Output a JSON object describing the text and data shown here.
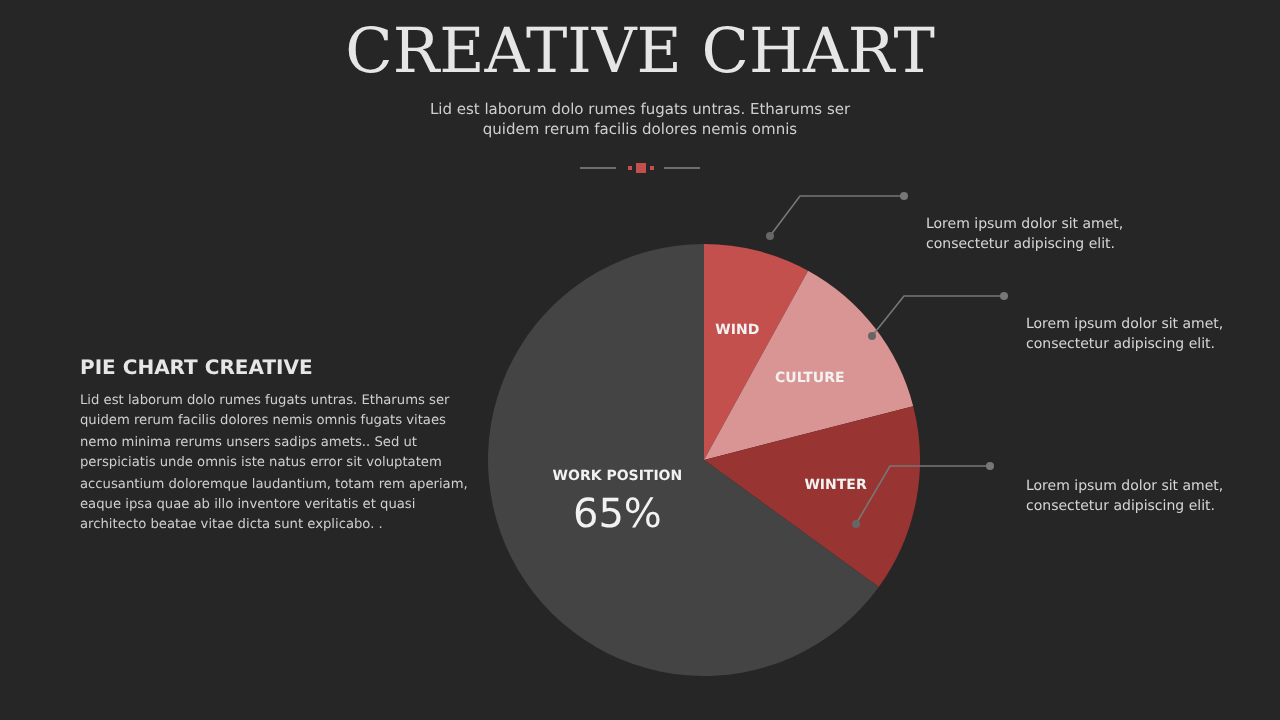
{
  "chart_data": {
    "type": "pie",
    "title": "CREATIVE CHART",
    "subtitle": "Lid est laborum dolo rumes fugats untras. Etharums ser quidem rerum facilis dolores nemis omnis",
    "categories": [
      "WIND",
      "CULTURE",
      "WINTER",
      "WORK POSITION"
    ],
    "values": [
      8,
      13,
      14,
      65
    ],
    "colors": [
      "#c4504e",
      "#d99594",
      "#983431",
      "#444444"
    ],
    "value_labels": [
      null,
      null,
      null,
      "65%"
    ],
    "legend": false,
    "annotations": [
      "PIE CHART CREATIVE",
      "Lid est laborum dolo rumes fugats untras. Etharums ser quidem rerum facilis dolores nemis omnis fugats vitaes nemo minima rerums unsers sadips amets.. Sed ut perspiciatis unde omnis iste natus error sit voluptatem accusantium doloremque laudantium, totam rem aperiam, eaque ipsa quae ab illo inventore veritatis et quasi architecto beatae vitae dicta sunt explicabo. .",
      "Lorem ipsum dolor sit amet, consectetur adipiscing elit.",
      "Lorem ipsum dolor sit amet, consectetur adipiscing elit.",
      "Lorem ipsum dolor sit amet, consectetur adipiscing elit."
    ]
  }
}
